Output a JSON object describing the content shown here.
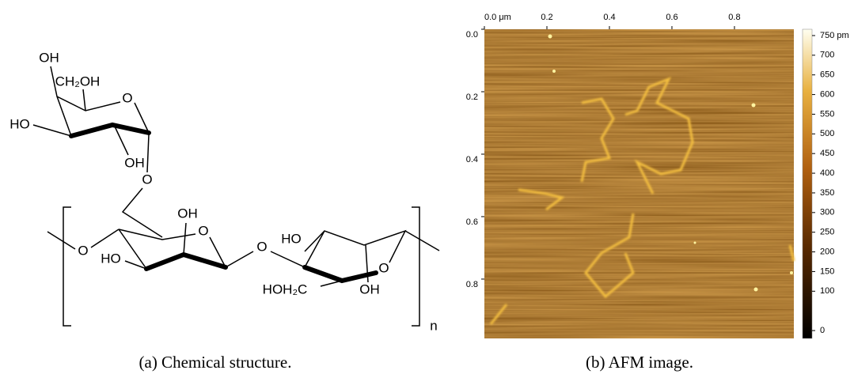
{
  "structure": {
    "atoms": [
      "OH",
      "CH₂OH",
      "HO",
      "O",
      "OH",
      "O",
      "OH",
      "O",
      "HO",
      "O",
      "O",
      "HO",
      "HOH₂C",
      "OH",
      "O"
    ],
    "repeat": "n",
    "caption": "(a) Chemical structure."
  },
  "afm": {
    "caption": "(b) AFM image.",
    "xlim": [
      0,
      0.99
    ],
    "xticks": [
      {
        "value": 0,
        "label": "0.0 μm"
      },
      0.2,
      0.4,
      0.6,
      0.8
    ],
    "ylim": [
      0,
      0.99
    ],
    "yticks": [
      {
        "value": 0,
        "label": "0.0"
      },
      0.2,
      0.4,
      0.6,
      0.8
    ],
    "colorbar": {
      "lim": [
        -20,
        766
      ],
      "ticks": [
        {
          "value": 750,
          "label": "750 pm"
        },
        700,
        650,
        600,
        550,
        500,
        450,
        400,
        350,
        300,
        250,
        200,
        150,
        100,
        0
      ]
    }
  }
}
